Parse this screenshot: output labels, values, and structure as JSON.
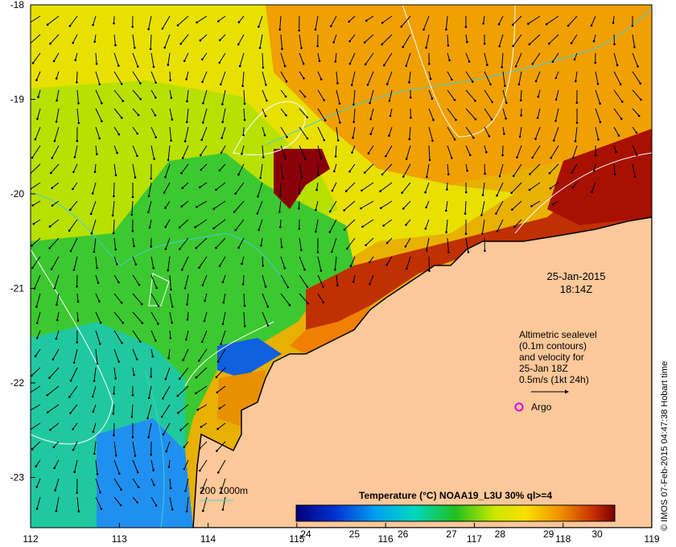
{
  "map": {
    "lon_ticks": [
      "112",
      "113",
      "114",
      "115",
      "116",
      "117",
      "118",
      "119"
    ],
    "lat_ticks": [
      "-18",
      "-19",
      "-20",
      "-21",
      "-22",
      "-23"
    ],
    "timestamp": {
      "date": "25-Jan-2015",
      "time": "18:14Z"
    },
    "altimetry_note": {
      "lines": [
        "Altimetric sealevel",
        "(0.1m contours)",
        "and velocity for",
        "25-Jan 18Z",
        "0.5m/s (1kt 24h)"
      ]
    },
    "argo_label": "Argo",
    "depth_legend": "200  1000m",
    "colorbar": {
      "title": "Temperature (°C) NOAA19_L3U 30% ql>=4",
      "ticks": [
        "24",
        "25",
        "26",
        "27",
        "28",
        "29",
        "30"
      ]
    },
    "credit": "© IMOS 07-Feb-2015 04:47:38 Hobart time"
  },
  "colors": {
    "land": "#fdc89a",
    "argo_marker": "#e000e0",
    "depth_contour": "#40d0d0",
    "sealevel_contour": "#ffffff"
  }
}
